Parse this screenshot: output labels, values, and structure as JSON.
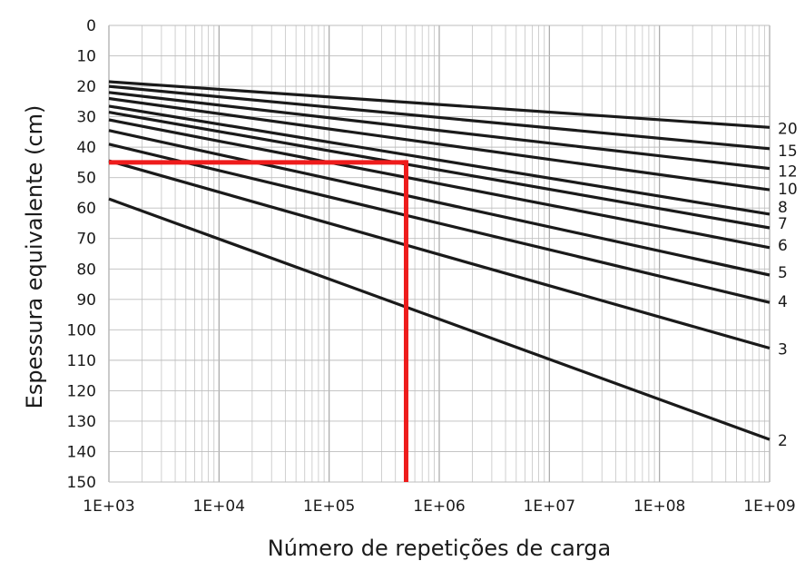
{
  "chart_data": {
    "type": "line",
    "xlabel": "Número de repetições de carga",
    "ylabel": "Espessura equivalente (cm)",
    "x_scale": "log",
    "xlim": [
      1000,
      1000000000
    ],
    "ylim": [
      0,
      150
    ],
    "y_inverted": true,
    "grid": true,
    "x_ticks": [
      "1E+03",
      "1E+04",
      "1E+05",
      "1E+06",
      "1E+07",
      "1E+08",
      "1E+09"
    ],
    "y_ticks": [
      "0",
      "10",
      "20",
      "30",
      "40",
      "50",
      "60",
      "70",
      "80",
      "90",
      "100",
      "110",
      "120",
      "130",
      "140",
      "150"
    ],
    "series": [
      {
        "name": "20",
        "x": [
          1000,
          1000000000
        ],
        "y": [
          18.5,
          33.5
        ]
      },
      {
        "name": "15",
        "x": [
          1000,
          1000000000
        ],
        "y": [
          20,
          40.5
        ]
      },
      {
        "name": "12",
        "x": [
          1000,
          1000000000
        ],
        "y": [
          22,
          47
        ]
      },
      {
        "name": "10",
        "x": [
          1000,
          1000000000
        ],
        "y": [
          24,
          54
        ]
      },
      {
        "name": "8",
        "x": [
          1000,
          1000000000
        ],
        "y": [
          26.5,
          62
        ]
      },
      {
        "name": "7",
        "x": [
          1000,
          1000000000
        ],
        "y": [
          28.5,
          66.5
        ]
      },
      {
        "name": "6",
        "x": [
          1000,
          1000000000
        ],
        "y": [
          31,
          73
        ]
      },
      {
        "name": "5",
        "x": [
          1000,
          1000000000
        ],
        "y": [
          34.5,
          82
        ]
      },
      {
        "name": "4",
        "x": [
          1000,
          1000000000
        ],
        "y": [
          39,
          91
        ]
      },
      {
        "name": "3",
        "x": [
          1000,
          1000000000
        ],
        "y": [
          44.5,
          106
        ]
      },
      {
        "name": "2",
        "x": [
          1000,
          1000000000
        ],
        "y": [
          57,
          136
        ]
      }
    ],
    "annotation": {
      "color": "#ee1c1c",
      "x": 500000,
      "y": 45
    }
  }
}
